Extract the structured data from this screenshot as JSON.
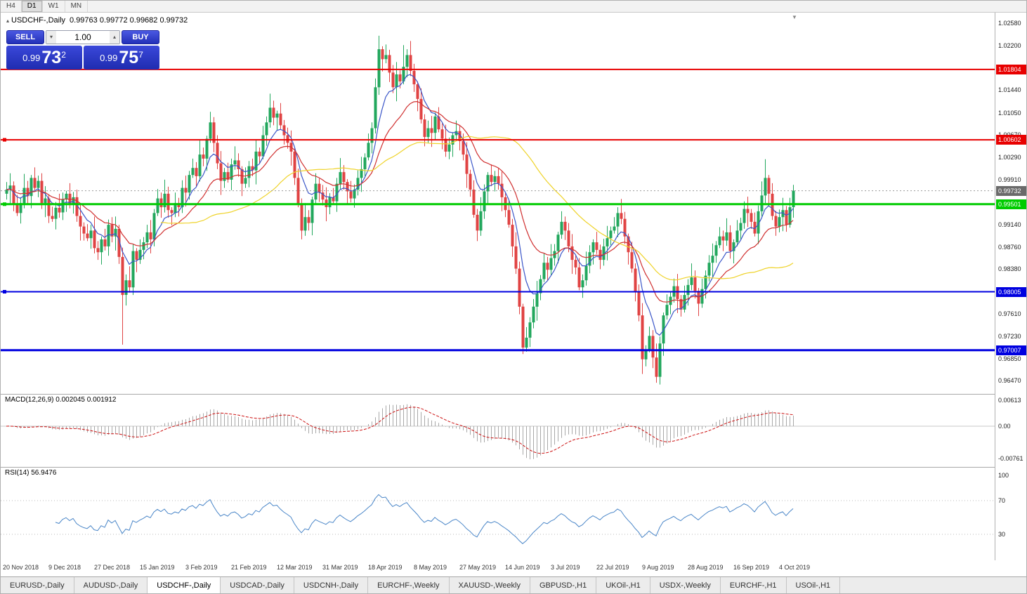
{
  "toolbar": {
    "periods": [
      "H4",
      "D1",
      "W1",
      "MN"
    ],
    "active": "D1"
  },
  "chart": {
    "title_symbol": "USDCHF-,Daily",
    "title_values": "0.99763 0.99772 0.99682 0.99732",
    "trade_panel": {
      "sell_label": "SELL",
      "buy_label": "BUY",
      "volume": "1.00",
      "sell_price": {
        "big": "0.99",
        "mid": "73",
        "sup": "2"
      },
      "buy_price": {
        "big": "0.99",
        "mid": "75",
        "sup": "7"
      }
    }
  },
  "indicators": {
    "macd_label": "MACD(12,26,9) 0.002045 0.001912",
    "rsi_label": "RSI(14) 56.9476"
  },
  "icons": {
    "up_arrow": "▴",
    "down_arrow": "▾",
    "collapse_arrow": "▴",
    "shift_marker": "▼"
  },
  "tabs": [
    "EURUSD-,Daily",
    "AUDUSD-,Daily",
    "USDCHF-,Daily",
    "USDCAD-,Daily",
    "USDCNH-,Daily",
    "EURCHF-,Weekly",
    "XAUUSD-,Weekly",
    "GBPUSD-,H1",
    "UKOil-,H1",
    "USDX-,Weekly",
    "EURCHF-,H1",
    "USOil-,H1"
  ],
  "active_tab": "USDCHF-,Daily",
  "chart_data": {
    "type": "candlestick",
    "symbol": "USDCHF-",
    "timeframe": "Daily",
    "ylim": [
      0.96259,
      1.02775
    ],
    "first_open": 0.9968,
    "closes": [
      0.9975,
      0.9982,
      0.995,
      0.9935,
      0.9952,
      0.9978,
      0.9964,
      0.9995,
      0.9978,
      0.999,
      0.9952,
      0.996,
      0.993,
      0.9925,
      0.9944,
      0.9936,
      0.9958,
      0.9968,
      0.995,
      0.9962,
      0.993,
      0.9912,
      0.99,
      0.9892,
      0.9905,
      0.9875,
      0.9868,
      0.989,
      0.9878,
      0.9915,
      0.9895,
      0.9908,
      0.986,
      0.9795,
      0.982,
      0.9808,
      0.987,
      0.9855,
      0.9872,
      0.9885,
      0.9902,
      0.989,
      0.9935,
      0.996,
      0.9945,
      0.9968,
      0.994,
      0.9935,
      0.9952,
      0.9945,
      0.9978,
      0.997,
      1.0,
      1.0012,
      0.9998,
      1.0035,
      1.0028,
      1.0062,
      1.009,
      1.0055,
      1.002,
      0.999,
      1.0005,
      0.9992,
      1.0018,
      1.0025,
      1.001,
      0.9985,
      0.9995,
      1.0015,
      1.0008,
      1.004,
      1.0032,
      1.0068,
      1.009,
      1.0115,
      1.0098,
      1.0105,
      1.0085,
      1.0068,
      1.0055,
      1.004,
      0.9995,
      0.995,
      0.9905,
      0.9928,
      0.9918,
      0.9958,
      0.9985,
      0.997,
      0.9958,
      0.9945,
      0.9962,
      0.9955,
      0.9985,
      1.0005,
      0.9988,
      0.9972,
      0.996,
      0.9975,
      0.9995,
      1.001,
      1.003,
      1.0055,
      1.008,
      1.015,
      1.0215,
      1.0198,
      1.0205,
      1.0175,
      1.015,
      1.0172,
      1.016,
      1.0185,
      1.0205,
      1.0178,
      1.0155,
      1.013,
      1.0095,
      1.0065,
      1.008,
      1.0072,
      1.01,
      1.0078,
      1.0062,
      1.004,
      1.0052,
      1.0068,
      1.0075,
      1.0058,
      1.0035,
      1.0002,
      0.9975,
      0.9932,
      0.9905,
      0.9938,
      0.9972,
      1.0,
      0.9988,
      0.9998,
      0.9985,
      0.9962,
      0.994,
      0.9915,
      0.9878,
      0.984,
      0.9775,
      0.9705,
      0.9722,
      0.9748,
      0.9775,
      0.9798,
      0.9822,
      0.985,
      0.9838,
      0.9858,
      0.987,
      0.9898,
      0.992,
      0.9905,
      0.9878,
      0.9855,
      0.9842,
      0.9808,
      0.982,
      0.9845,
      0.9868,
      0.9885,
      0.9872,
      0.9855,
      0.9878,
      0.9892,
      0.9905,
      0.9912,
      0.9935,
      0.9925,
      0.9895,
      0.9868,
      0.984,
      0.98,
      0.976,
      0.9685,
      0.9702,
      0.9725,
      0.9688,
      0.9655,
      0.9712,
      0.976,
      0.9778,
      0.9792,
      0.981,
      0.9788,
      0.977,
      0.9795,
      0.9812,
      0.9825,
      0.9802,
      0.978,
      0.9805,
      0.9828,
      0.985,
      0.9862,
      0.988,
      0.9895,
      0.9888,
      0.9902,
      0.987,
      0.9885,
      0.9905,
      0.9918,
      0.9942,
      0.9935,
      0.992,
      0.99,
      0.9938,
      0.9965,
      0.9995,
      0.9968,
      0.993,
      0.9912,
      0.9928,
      0.994,
      0.9915,
      0.9945,
      0.99732
    ],
    "wick_pattern": [
      0.0013,
      0.0021,
      0.0007,
      0.0016,
      0.001,
      0.0024,
      0.0012,
      0.0005,
      0.0018,
      0.0009
    ],
    "special_wicks": {
      "33": {
        "l": 0.971
      },
      "84": {
        "l": 0.989
      },
      "105": {
        "h": 1.0165
      },
      "106": {
        "h": 1.0238
      },
      "113": {
        "h": 1.0222
      },
      "147": {
        "l": 0.9694
      },
      "181": {
        "l": 0.966
      },
      "185": {
        "l": 0.9645
      },
      "216": {
        "h": 1.0027
      }
    },
    "up_color": "#22a75d",
    "down_color": "#e04343",
    "x_tick_labels": [
      "20 Nov 2018",
      "9 Dec 2018",
      "27 Dec 2018",
      "15 Jan 2019",
      "3 Feb 2019",
      "21 Feb 2019",
      "12 Mar 2019",
      "31 Mar 2019",
      "18 Apr 2019",
      "8 May 2019",
      "27 May 2019",
      "14 Jun 2019",
      "3 Jul 2019",
      "22 Jul 2019",
      "9 Aug 2019",
      "28 Aug 2019",
      "16 Sep 2019",
      "4 Oct 2019"
    ],
    "x_tick_step": 13,
    "y_ticks": [
      1.0258,
      1.022,
      1.0144,
      1.0105,
      1.0067,
      1.0029,
      0.9991,
      0.9914,
      0.9876,
      0.9838,
      0.9761,
      0.9723,
      0.9685,
      0.9647
    ],
    "hlines": [
      {
        "price": 1.01804,
        "label": "1.01804",
        "color": "#e80000",
        "width": 2,
        "marker": false
      },
      {
        "price": 1.00602,
        "label": "1.00602",
        "color": "#e80000",
        "width": 2,
        "marker": true
      },
      {
        "price": 0.99501,
        "label": "0.99501",
        "color": "#00cc00",
        "width": 3,
        "marker": true
      },
      {
        "price": 0.98005,
        "label": "0.98005",
        "color": "#0000e0",
        "width": 2,
        "marker": true
      },
      {
        "price": 0.97007,
        "label": "0.97007",
        "color": "#0000e0",
        "width": 3,
        "marker": false
      }
    ],
    "current_price": {
      "value": 0.99732,
      "label": "0.99732",
      "badge_color": "#6a6a6a"
    },
    "overlays": [
      {
        "type": "ema",
        "period": 8,
        "color": "#3b56c8"
      },
      {
        "type": "ema",
        "period": 20,
        "color": "#d03030"
      },
      {
        "type": "sma",
        "period": 45,
        "color": "#efd32a"
      }
    ],
    "macd": {
      "fast": 12,
      "slow": 26,
      "signal": 9,
      "hist_color": "#a8a8a8",
      "signal_color": "#cc1111",
      "zero_color": "#c8c8c8",
      "axis_ticks": [
        "0.00613",
        "0.00",
        "-0.00761"
      ]
    },
    "rsi": {
      "period": 14,
      "color": "#4a86c8",
      "levels": [
        70,
        30
      ],
      "axis_ticks": [
        "100",
        "70",
        "30"
      ]
    }
  }
}
